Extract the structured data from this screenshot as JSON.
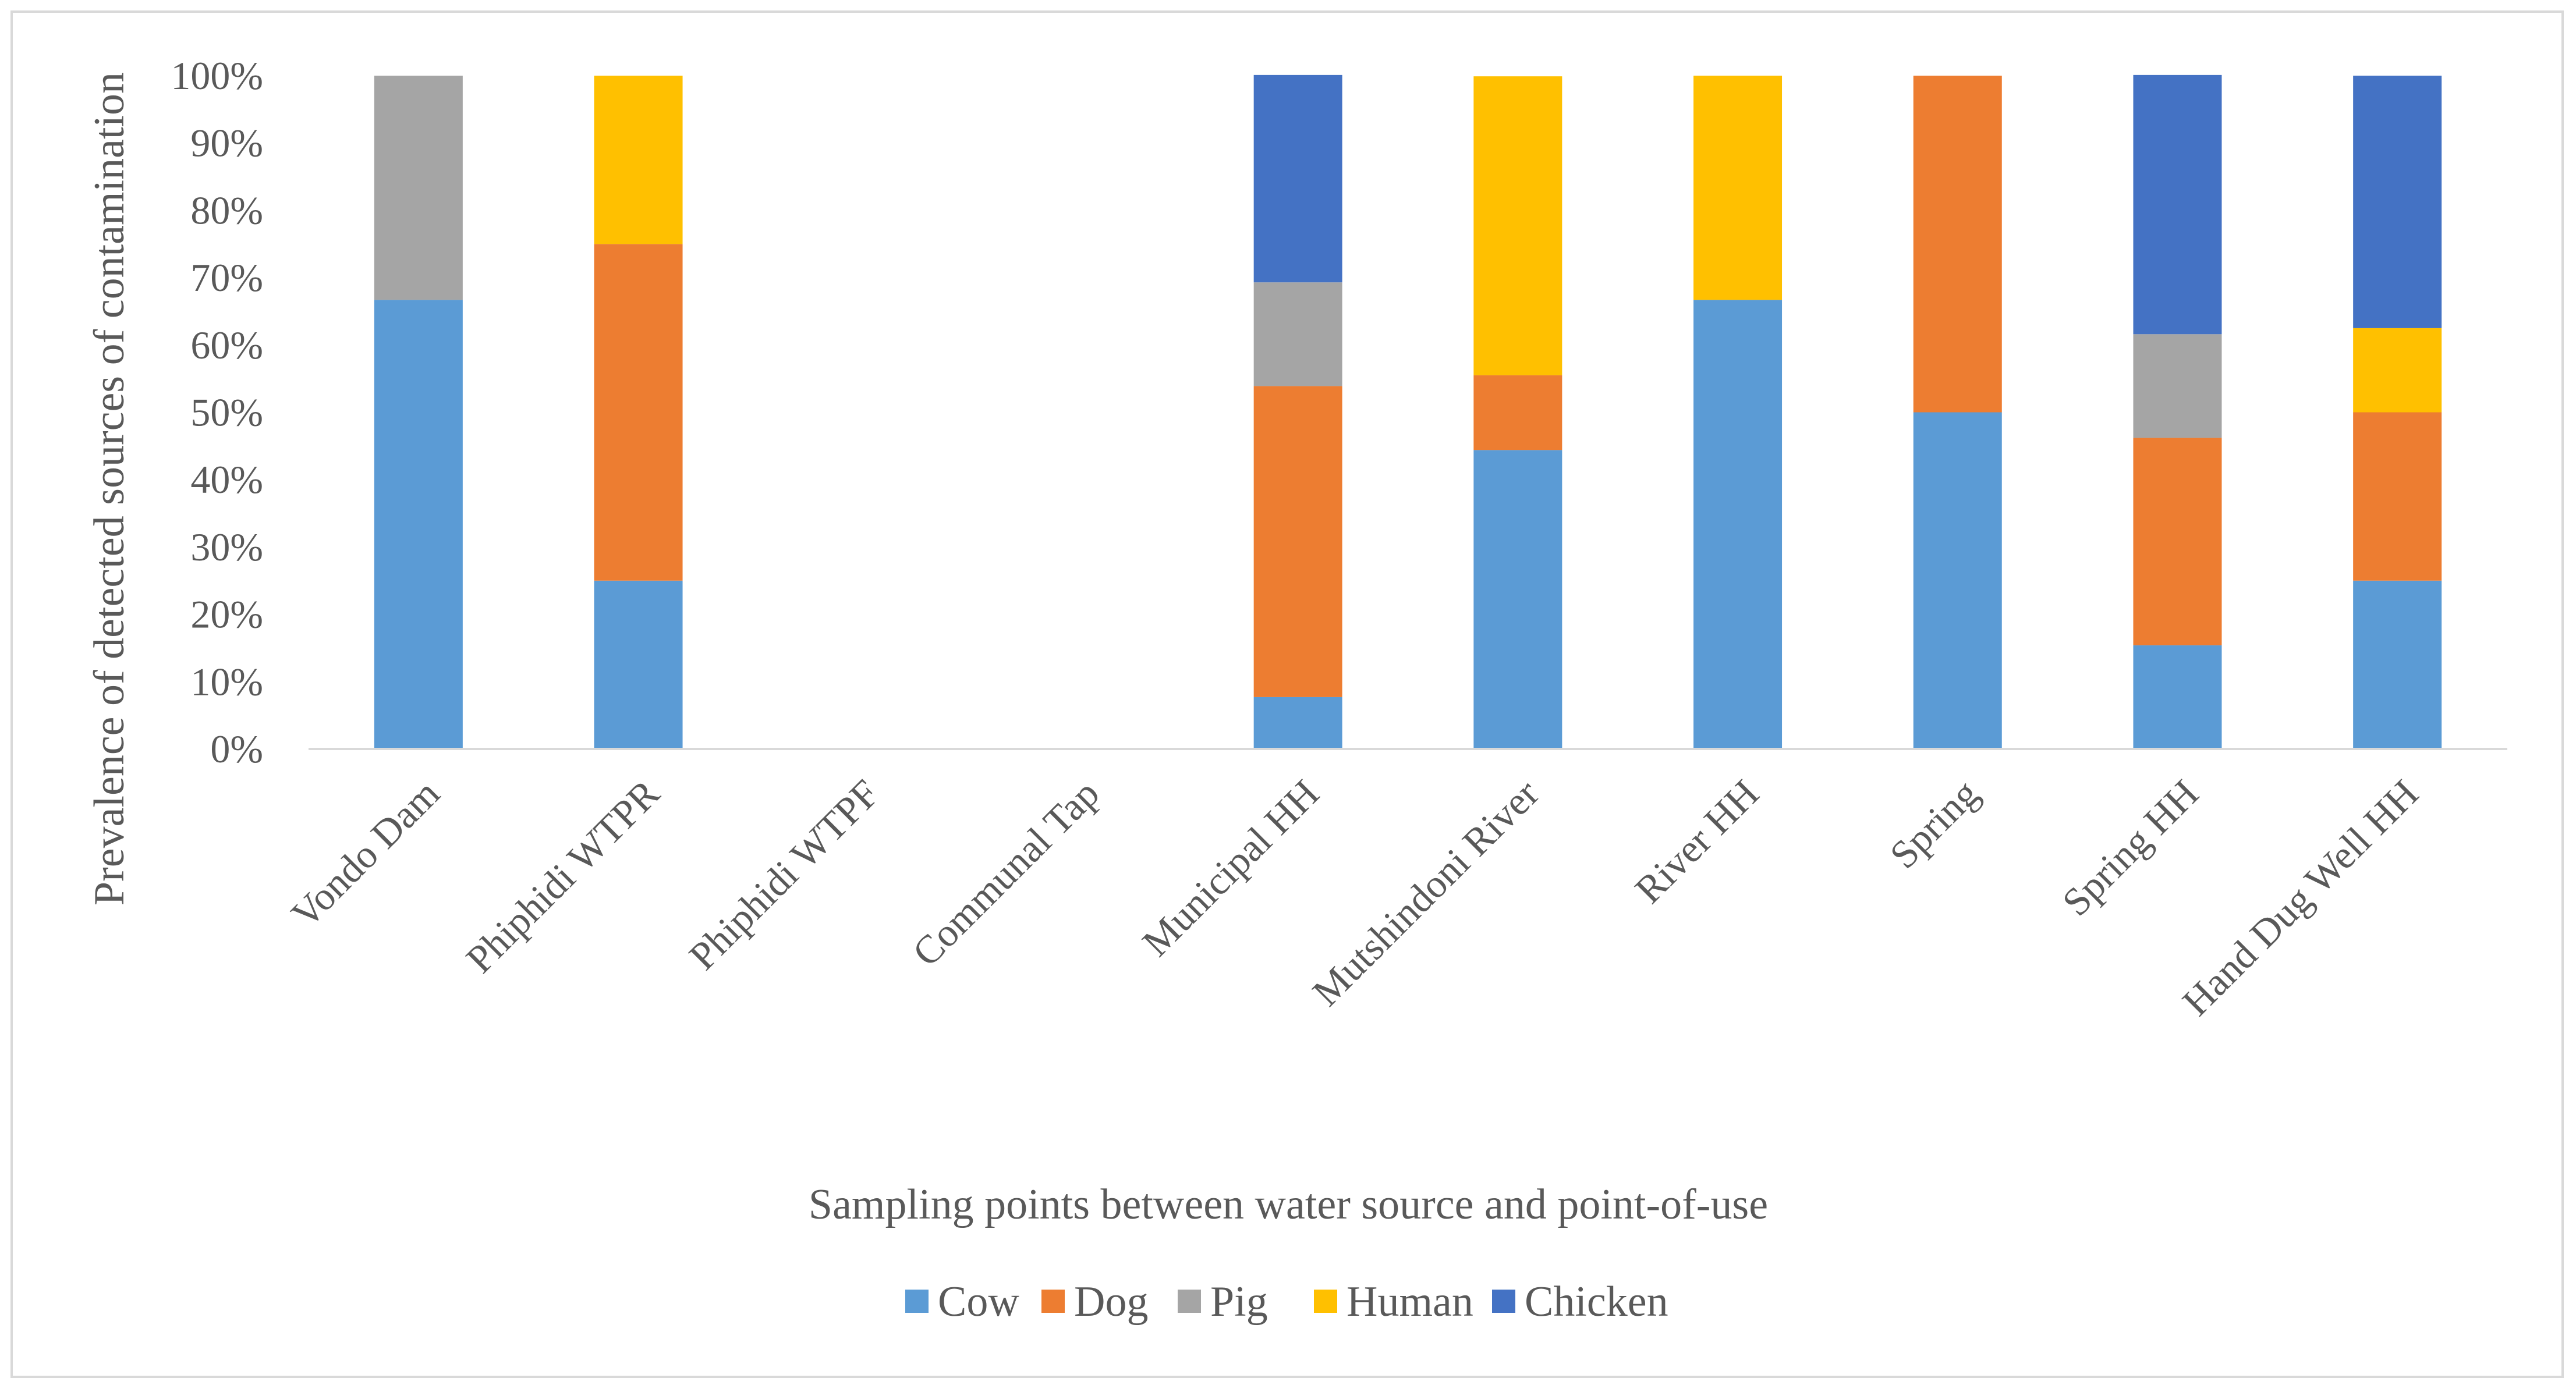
{
  "chart_data": {
    "type": "bar",
    "stacked": true,
    "percent_stacked": true,
    "title": "",
    "xlabel": "Sampling points between water source and point-of-use",
    "ylabel": "Prevalence of detected sources of contamination",
    "ylim": [
      0,
      100
    ],
    "yticks": [
      "0%",
      "10%",
      "20%",
      "30%",
      "40%",
      "50%",
      "60%",
      "70%",
      "80%",
      "90%",
      "100%"
    ],
    "categories": [
      "Vondo Dam",
      "Phiphidi WTPR",
      "Phiphidi WTPF",
      "Communal Tap",
      "Municipal HH",
      "Mutshindoni River",
      "River HH",
      "Spring",
      "Spring HH",
      "Hand Dug Well HH"
    ],
    "series": [
      {
        "name": "Cow",
        "color": "#5b9bd5",
        "values": [
          66.7,
          25.0,
          0,
          0,
          7.7,
          44.4,
          66.7,
          50.0,
          15.4,
          25.0
        ]
      },
      {
        "name": "Dog",
        "color": "#ed7d31",
        "values": [
          0,
          50.0,
          0,
          0,
          46.2,
          11.1,
          0,
          50.0,
          30.8,
          25.0
        ]
      },
      {
        "name": "Pig",
        "color": "#a5a5a5",
        "values": [
          33.3,
          0,
          0,
          0,
          15.4,
          0,
          0,
          0,
          15.4,
          0
        ]
      },
      {
        "name": "Human",
        "color": "#ffc000",
        "values": [
          0,
          25.0,
          0,
          0,
          0,
          44.4,
          33.3,
          0,
          0,
          12.5
        ]
      },
      {
        "name": "Chicken",
        "color": "#4472c4",
        "values": [
          0,
          0,
          0,
          0,
          30.8,
          0,
          0,
          0,
          38.5,
          37.5
        ]
      }
    ],
    "grid": false,
    "legend_position": "bottom"
  }
}
